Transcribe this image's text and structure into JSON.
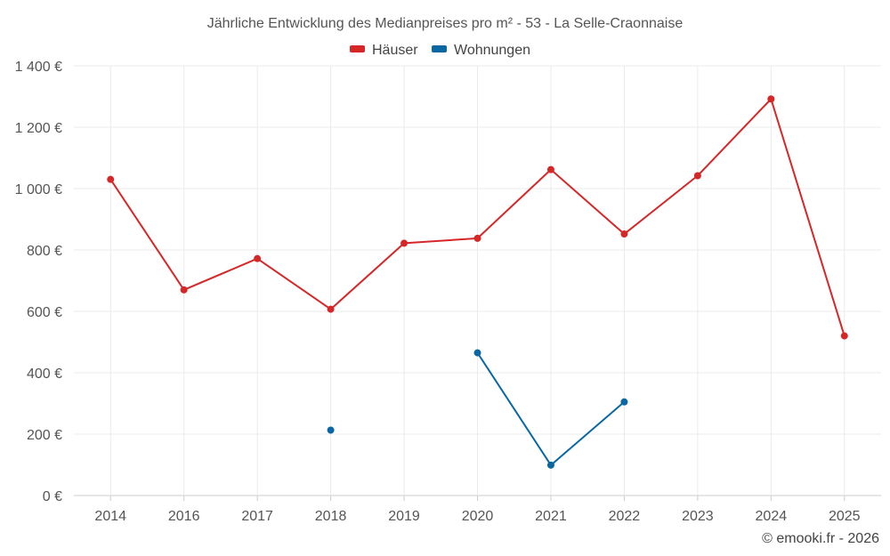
{
  "chart_data": {
    "type": "line",
    "title": "Jährliche Entwicklung des Medianpreises pro m² - 53 - La Selle-Craonnaise",
    "categories": [
      "2014",
      "2016",
      "2017",
      "2018",
      "2019",
      "2020",
      "2021",
      "2022",
      "2023",
      "2024",
      "2025"
    ],
    "ylim": [
      0,
      1400
    ],
    "yticks": [
      0,
      200,
      400,
      600,
      800,
      1000,
      1200,
      1400
    ],
    "ytick_labels": [
      "0 €",
      "200 €",
      "400 €",
      "600 €",
      "800 €",
      "1 000 €",
      "1 200 €",
      "1 400 €"
    ],
    "grid": true,
    "legend_position": "top-center",
    "series": [
      {
        "name": "Häuser",
        "color": "#d62728",
        "values": [
          1030,
          670,
          772,
          607,
          822,
          838,
          1062,
          852,
          1042,
          1292,
          520
        ]
      },
      {
        "name": "Wohnungen",
        "color": "#0a67a3",
        "values": [
          null,
          null,
          null,
          213,
          null,
          465,
          99,
          305,
          null,
          null,
          null
        ]
      }
    ]
  },
  "credit": "© emooki.fr - 2026"
}
